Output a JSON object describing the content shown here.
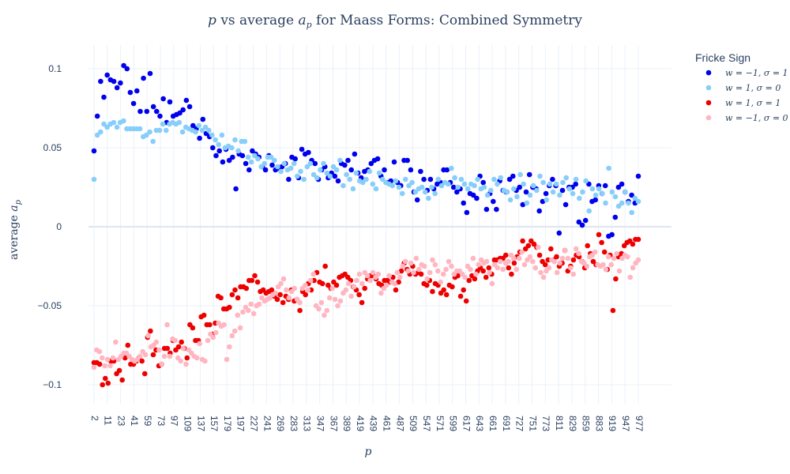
{
  "chart_data": {
    "type": "scatter",
    "title": "p vs average a_p for Maass Forms: Combined Symmetry",
    "title_parts": {
      "var1": "p",
      "mid": " vs average ",
      "var2": "a",
      "sub2": "p",
      "rest": " for Maass Forms: Combined Symmetry"
    },
    "xlabel": "p",
    "ylabel": "average a_p",
    "ylabel_parts": {
      "text": "average ",
      "var": "a",
      "sub": "p"
    },
    "x_tick_labels": [
      "2",
      "11",
      "23",
      "41",
      "59",
      "73",
      "97",
      "109",
      "137",
      "157",
      "179",
      "197",
      "227",
      "241",
      "269",
      "283",
      "313",
      "347",
      "367",
      "389",
      "419",
      "439",
      "461",
      "487",
      "509",
      "547",
      "571",
      "599",
      "617",
      "643",
      "661",
      "691",
      "727",
      "751",
      "773",
      "811",
      "829",
      "859",
      "883",
      "919",
      "947",
      "977"
    ],
    "y_ticks": [
      0.1,
      0.05,
      0,
      -0.05,
      -0.1
    ],
    "y_tick_labels": [
      "0.1",
      "0.05",
      "0",
      "−0.05",
      "−0.1"
    ],
    "ylim": [
      -0.112,
      0.115
    ],
    "legend": {
      "title": "Fricke Sign",
      "position": "top-right",
      "entries": [
        {
          "label": "w = −1, σ = 1",
          "color": "#0000ee"
        },
        {
          "label": "w = 1, σ = 0",
          "color": "#87cefa"
        },
        {
          "label": "w = 1, σ = 1",
          "color": "#ee0000"
        },
        {
          "label": "w = −1, σ = 0",
          "color": "#ffb6c1"
        }
      ]
    },
    "series": [
      {
        "name": "w=-1, sigma=1",
        "color": "#0000ee",
        "values": [
          0.048,
          0.07,
          0.092,
          0.082,
          0.096,
          0.093,
          0.092,
          0.088,
          0.091,
          0.102,
          0.1,
          0.085,
          0.078,
          0.086,
          0.073,
          0.094,
          0.073,
          0.097,
          0.076,
          0.073,
          0.07,
          0.081,
          0.066,
          0.079,
          0.07,
          0.071,
          0.072,
          0.074,
          0.08,
          0.076,
          0.064,
          0.062,
          0.056,
          0.068,
          0.059,
          0.057,
          0.05,
          0.045,
          0.048,
          0.041,
          0.049,
          0.042,
          0.044,
          0.024,
          0.046,
          0.045,
          0.04,
          0.036,
          0.048,
          0.046,
          0.044,
          0.038,
          0.036,
          0.045,
          0.039,
          0.036,
          0.037,
          0.038,
          0.04,
          0.03,
          0.044,
          0.043,
          0.031,
          0.049,
          0.046,
          0.047,
          0.042,
          0.04,
          0.03,
          0.036,
          0.038,
          0.031,
          0.034,
          0.032,
          0.029,
          0.04,
          0.039,
          0.042,
          0.036,
          0.046,
          0.034,
          0.031,
          0.035,
          0.036,
          0.04,
          0.042,
          0.043,
          0.032,
          0.036,
          0.028,
          0.029,
          0.041,
          0.028,
          0.026,
          0.042,
          0.042,
          0.036,
          0.022,
          0.017,
          0.035,
          0.03,
          0.023,
          0.03,
          0.024,
          0.027,
          0.028,
          0.036,
          0.036,
          0.028,
          0.025,
          0.022,
          0.024,
          0.015,
          0.009,
          0.021,
          0.02,
          0.018,
          0.032,
          0.028,
          0.011,
          0.021,
          0.016,
          0.011,
          0.029,
          0.023,
          0.022,
          0.03,
          0.032,
          0.023,
          0.025,
          0.014,
          0.022,
          0.033,
          0.025,
          0.024,
          0.01,
          0.016,
          0.021,
          0.026,
          0.03,
          0.026,
          -0.004,
          0.023,
          0.014,
          0.025,
          0.025,
          0.027,
          0.003,
          0.001,
          0.004,
          0.027,
          0.016,
          0.017,
          0.026,
          0.021,
          0.026,
          -0.006,
          -0.005,
          0.006,
          0.025,
          0.027,
          0.022,
          0.016,
          0.02,
          0.015,
          0.032
        ]
      },
      {
        "name": "w=1, sigma=0",
        "color": "#87cefa",
        "values": [
          0.03,
          0.058,
          0.06,
          0.065,
          0.063,
          0.065,
          0.066,
          0.063,
          0.066,
          0.067,
          0.062,
          0.062,
          0.062,
          0.062,
          0.062,
          0.057,
          0.058,
          0.06,
          0.054,
          0.061,
          0.061,
          0.065,
          0.061,
          0.065,
          0.066,
          0.065,
          0.066,
          0.06,
          0.063,
          0.062,
          0.061,
          0.06,
          0.064,
          0.061,
          0.063,
          0.061,
          0.058,
          0.055,
          0.052,
          0.058,
          0.05,
          0.051,
          0.05,
          0.055,
          0.048,
          0.054,
          0.054,
          0.044,
          0.041,
          0.045,
          0.043,
          0.038,
          0.04,
          0.044,
          0.044,
          0.042,
          0.038,
          0.035,
          0.04,
          0.036,
          0.037,
          0.04,
          0.032,
          0.035,
          0.03,
          0.038,
          0.04,
          0.033,
          0.031,
          0.036,
          0.04,
          0.034,
          0.032,
          0.038,
          0.036,
          0.042,
          0.026,
          0.033,
          0.03,
          0.024,
          0.034,
          0.029,
          0.028,
          0.03,
          0.035,
          0.027,
          0.024,
          0.034,
          0.03,
          0.028,
          0.027,
          0.026,
          0.029,
          0.025,
          0.021,
          0.03,
          0.026,
          0.028,
          0.022,
          0.024,
          0.025,
          0.022,
          0.018,
          0.025,
          0.021,
          0.03,
          0.026,
          0.028,
          0.027,
          0.037,
          0.031,
          0.025,
          0.03,
          0.027,
          0.024,
          0.027,
          0.026,
          0.03,
          0.024,
          0.025,
          0.02,
          0.023,
          0.03,
          0.027,
          0.031,
          0.023,
          0.022,
          0.017,
          0.024,
          0.019,
          0.033,
          0.027,
          0.015,
          0.02,
          0.026,
          0.023,
          0.032,
          0.028,
          0.017,
          0.027,
          0.022,
          0.027,
          0.02,
          0.028,
          0.031,
          0.024,
          0.021,
          0.03,
          0.018,
          0.022,
          0.029,
          0.01,
          0.024,
          0.02,
          0.024,
          0.021,
          0.015,
          0.037,
          0.022,
          0.019,
          0.013,
          0.015,
          0.022,
          0.015,
          0.009,
          0.018,
          0.016
        ]
      },
      {
        "name": "w=1, sigma=1",
        "color": "#ee0000",
        "values": [
          -0.086,
          -0.086,
          -0.087,
          -0.1,
          -0.096,
          -0.099,
          -0.085,
          -0.085,
          -0.093,
          -0.091,
          -0.097,
          -0.083,
          -0.075,
          -0.087,
          -0.087,
          -0.085,
          -0.083,
          -0.085,
          -0.093,
          -0.07,
          -0.066,
          -0.081,
          -0.078,
          -0.088,
          -0.087,
          -0.077,
          -0.077,
          -0.08,
          -0.072,
          -0.078,
          -0.076,
          -0.073,
          -0.077,
          -0.083,
          -0.062,
          -0.064,
          -0.072,
          -0.072,
          -0.057,
          -0.056,
          -0.062,
          -0.062,
          -0.068,
          -0.061,
          -0.044,
          -0.045,
          -0.052,
          -0.052,
          -0.051,
          -0.043,
          -0.04,
          -0.045,
          -0.038,
          -0.038,
          -0.039,
          -0.034,
          -0.034,
          -0.031,
          -0.035,
          -0.041,
          -0.04,
          -0.042,
          -0.041,
          -0.04,
          -0.044,
          -0.046,
          -0.043,
          -0.048,
          -0.044,
          -0.046,
          -0.04,
          -0.047,
          -0.046,
          -0.053,
          -0.041,
          -0.043,
          -0.036,
          -0.04,
          -0.034,
          -0.029,
          -0.035,
          -0.036,
          -0.025,
          -0.037,
          -0.039,
          -0.035,
          -0.037,
          -0.032,
          -0.031,
          -0.03,
          -0.032,
          -0.034,
          -0.038,
          -0.04,
          -0.043,
          -0.048,
          -0.039,
          -0.033,
          -0.031,
          -0.031,
          -0.033,
          -0.036,
          -0.037,
          -0.034,
          -0.034,
          -0.035,
          -0.032,
          -0.04,
          -0.035,
          -0.028,
          -0.023,
          -0.027,
          -0.03,
          -0.025,
          -0.03,
          -0.029,
          -0.03,
          -0.036,
          -0.037,
          -0.034,
          -0.041,
          -0.036,
          -0.037,
          -0.042,
          -0.04,
          -0.043,
          -0.037,
          -0.038,
          -0.032,
          -0.031,
          -0.044,
          -0.04,
          -0.047,
          -0.034,
          -0.031,
          -0.033,
          -0.028,
          -0.026,
          -0.028,
          -0.032,
          -0.026,
          -0.03,
          -0.021,
          -0.021,
          -0.02,
          -0.02,
          -0.018,
          -0.026,
          -0.03,
          -0.023,
          -0.019,
          -0.016,
          -0.009,
          -0.014,
          -0.012,
          -0.009,
          -0.011,
          -0.013,
          -0.018,
          -0.022,
          -0.024,
          -0.021,
          -0.014,
          -0.021,
          -0.019,
          -0.025,
          -0.023,
          -0.015,
          -0.028,
          -0.025,
          -0.021,
          -0.018,
          -0.019,
          -0.022,
          -0.026,
          -0.012,
          -0.017,
          -0.022,
          -0.024,
          -0.005,
          -0.01,
          -0.016,
          -0.027,
          -0.018,
          -0.053,
          -0.033,
          -0.019,
          -0.017,
          -0.012,
          -0.01,
          -0.009,
          -0.011,
          -0.008,
          -0.008
        ]
      },
      {
        "name": "w=-1, sigma=0",
        "color": "#ffb6c1",
        "values": [
          -0.089,
          -0.078,
          -0.079,
          -0.083,
          -0.088,
          -0.084,
          -0.088,
          -0.083,
          -0.073,
          -0.084,
          -0.082,
          -0.08,
          -0.08,
          -0.082,
          -0.084,
          -0.085,
          -0.084,
          -0.082,
          -0.079,
          -0.081,
          -0.069,
          -0.076,
          -0.075,
          -0.073,
          -0.078,
          -0.087,
          -0.082,
          -0.062,
          -0.082,
          -0.071,
          -0.072,
          -0.083,
          -0.085,
          -0.077,
          -0.087,
          -0.078,
          -0.08,
          -0.082,
          -0.083,
          -0.074,
          -0.084,
          -0.085,
          -0.072,
          -0.068,
          -0.07,
          -0.067,
          -0.061,
          -0.063,
          -0.062,
          -0.084,
          -0.076,
          -0.069,
          -0.066,
          -0.056,
          -0.064,
          -0.054,
          -0.051,
          -0.053,
          -0.049,
          -0.055,
          -0.05,
          -0.049,
          -0.045,
          -0.047,
          -0.046,
          -0.045,
          -0.043,
          -0.042,
          -0.038,
          -0.036,
          -0.033,
          -0.04,
          -0.045,
          -0.041,
          -0.039,
          -0.046,
          -0.048,
          -0.039,
          -0.037,
          -0.04,
          -0.034,
          -0.03,
          -0.05,
          -0.052,
          -0.048,
          -0.056,
          -0.053,
          -0.045,
          -0.039,
          -0.046,
          -0.05,
          -0.047,
          -0.042,
          -0.04,
          -0.036,
          -0.044,
          -0.038,
          -0.034,
          -0.03,
          -0.036,
          -0.029,
          -0.031,
          -0.034,
          -0.029,
          -0.032,
          -0.03,
          -0.042,
          -0.039,
          -0.037,
          -0.031,
          -0.035,
          -0.036,
          -0.029,
          -0.032,
          -0.025,
          -0.022,
          -0.028,
          -0.023,
          -0.029,
          -0.02,
          -0.027,
          -0.024,
          -0.025,
          -0.033,
          -0.029,
          -0.021,
          -0.024,
          -0.028,
          -0.035,
          -0.03,
          -0.027,
          -0.022,
          -0.025,
          -0.03,
          -0.028,
          -0.028,
          -0.03,
          -0.032,
          -0.025,
          -0.027,
          -0.02,
          -0.03,
          -0.024,
          -0.021,
          -0.023,
          -0.022,
          -0.029,
          -0.036,
          -0.024,
          -0.026,
          -0.022,
          -0.027,
          -0.023,
          -0.022,
          -0.018,
          -0.02,
          -0.027,
          -0.02,
          -0.016,
          -0.024,
          -0.021,
          -0.019,
          -0.022,
          -0.026,
          -0.013,
          -0.029,
          -0.032,
          -0.028,
          -0.026,
          -0.021,
          -0.022,
          -0.029,
          -0.023,
          -0.02,
          -0.015,
          -0.02,
          -0.026,
          -0.03,
          -0.014,
          -0.017,
          -0.022,
          -0.023,
          -0.025,
          -0.019,
          -0.018,
          -0.016,
          -0.024,
          -0.025,
          -0.024,
          -0.027,
          -0.019,
          -0.024,
          -0.02,
          -0.017,
          -0.028,
          -0.02,
          -0.018,
          -0.019,
          -0.032,
          -0.026,
          -0.023,
          -0.021
        ]
      }
    ]
  }
}
